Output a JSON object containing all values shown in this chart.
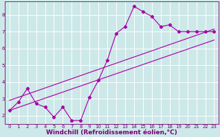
{
  "title": "",
  "xlabel": "Windchill (Refroidissement éolien,°C)",
  "ylabel": "",
  "bg_color": "#cde8e8",
  "grid_color": "#ffffff",
  "line_color": "#aa00aa",
  "xlim": [
    -0.5,
    23.5
  ],
  "ylim": [
    1.5,
    8.8
  ],
  "xticks": [
    0,
    1,
    2,
    3,
    4,
    5,
    6,
    7,
    8,
    9,
    10,
    11,
    12,
    13,
    14,
    15,
    16,
    17,
    18,
    19,
    20,
    21,
    22,
    23
  ],
  "yticks": [
    2,
    3,
    4,
    5,
    6,
    7,
    8
  ],
  "scatter_x": [
    0,
    1,
    2,
    3,
    4,
    5,
    6,
    7,
    8,
    9,
    10,
    11,
    12,
    13,
    14,
    15,
    16,
    17,
    18,
    19,
    20,
    21,
    22,
    23
  ],
  "scatter_y": [
    2.3,
    2.8,
    3.6,
    2.7,
    2.5,
    1.9,
    2.5,
    1.7,
    1.7,
    3.1,
    4.1,
    5.3,
    6.9,
    7.3,
    8.5,
    8.2,
    7.9,
    7.3,
    7.4,
    7.0,
    7.0,
    7.0,
    7.0,
    7.0
  ],
  "line1_x": [
    0,
    23
  ],
  "line1_y": [
    2.3,
    6.5
  ],
  "line2_x": [
    0,
    23
  ],
  "line2_y": [
    2.9,
    7.15
  ],
  "marker_size": 2.2,
  "linewidth": 0.85,
  "font_color": "#770077",
  "tick_fontsize": 5.0,
  "xlabel_fontsize": 6.5,
  "xlabel_bold": true
}
